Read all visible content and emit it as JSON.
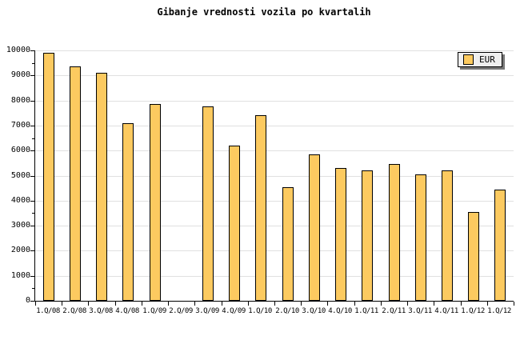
{
  "title": "Gibanje vrednosti vozila po kvartalih",
  "legend": {
    "label": "EUR"
  },
  "colors": {
    "background": "#FFFFFF",
    "bar_fill": "#FCCA60",
    "bar_border": "#000000",
    "grid": "#E0E0E0",
    "axis": "#000000",
    "legend_bg": "#EEEEEE",
    "legend_shadow": "#777777"
  },
  "chart_data": {
    "type": "bar",
    "title": "Gibanje vrednosti vozila po kvartalih",
    "xlabel": "",
    "ylabel": "",
    "categories": [
      "1.Q/08",
      "2.Q/08",
      "3.Q/08",
      "4.Q/08",
      "1.Q/09",
      "2.Q/09",
      "3.Q/09",
      "4.Q/09",
      "1.Q/10",
      "2.Q/10",
      "3.Q/10",
      "4.Q/10",
      "1.Q/11",
      "2.Q/11",
      "3.Q/11",
      "4.Q/11",
      "1.Q/12",
      "1.Q/12"
    ],
    "series": [
      {
        "name": "EUR",
        "values": [
          9900,
          9350,
          9100,
          7100,
          7850,
          0,
          7750,
          6200,
          7400,
          4550,
          5850,
          5300,
          5200,
          5450,
          5050,
          5200,
          3550,
          4450
        ]
      }
    ],
    "ylim": [
      0,
      10000
    ],
    "yticks": [
      0,
      1000,
      2000,
      3000,
      4000,
      5000,
      6000,
      7000,
      8000,
      9000,
      10000
    ],
    "ytick_minor_step": 500,
    "grid": true,
    "legend_position": "top-right"
  }
}
